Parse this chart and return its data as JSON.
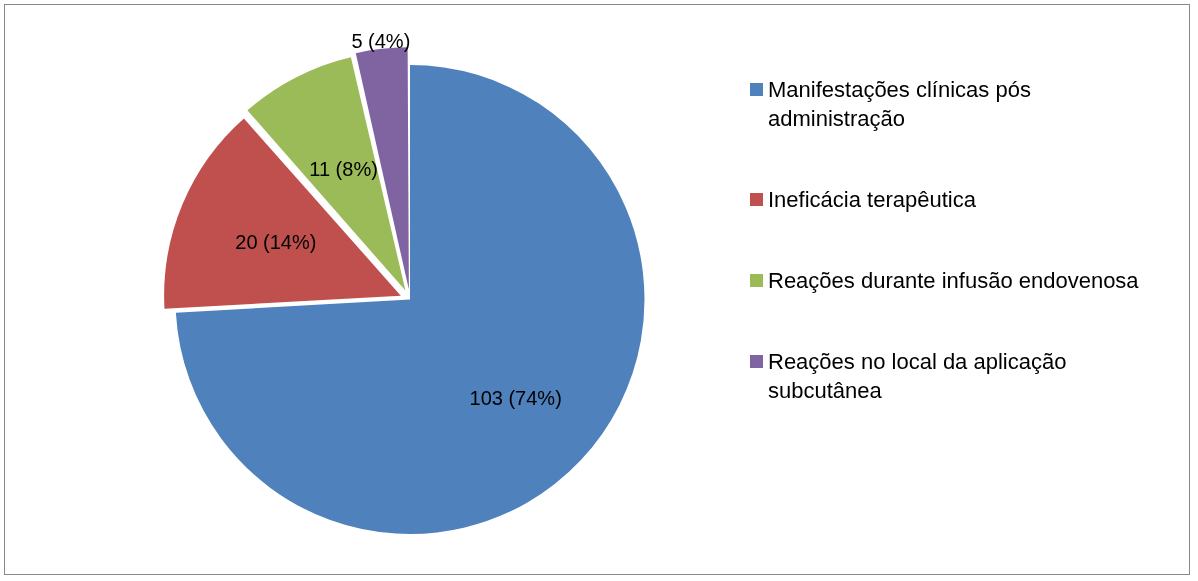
{
  "chart_data": {
    "type": "pie",
    "categories": [
      "Manifestações clínicas pós administração",
      "Ineficácia terapêutica",
      "Reações durante infusão endovenosa",
      "Reações no local da aplicação subcutânea"
    ],
    "values": [
      103,
      20,
      11,
      5
    ],
    "colors": [
      "#4f81bd",
      "#c0504d",
      "#9bbb59",
      "#8064a2"
    ],
    "value_labels": [
      "103 (74%)",
      "20 (14%)",
      "11 (8%)",
      "5 (4%)"
    ],
    "legend": "right"
  }
}
